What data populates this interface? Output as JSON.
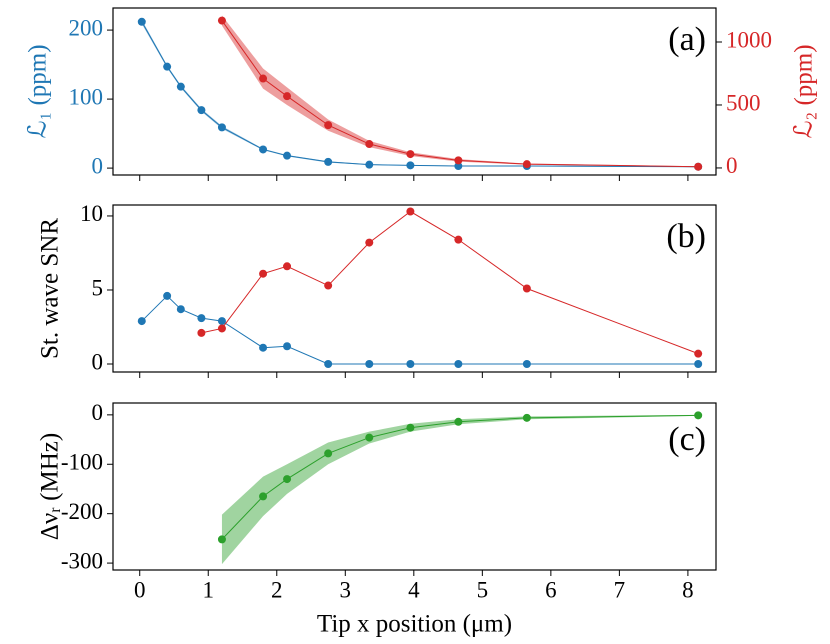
{
  "chart_data": [
    {
      "type": "line",
      "panel_label": "(a)",
      "ylabel": "ℒ₁ (ppm)",
      "y2label": "ℒ₂ (ppm)",
      "y_color": "#1f77b4",
      "y2_color": "#d62728",
      "xlim": [
        -0.39,
        8.41
      ],
      "ylim": [
        -10,
        232
      ],
      "yticks": [
        0,
        100,
        200
      ],
      "y2lim": [
        -56,
        1270
      ],
      "y2ticks": [
        0,
        500,
        1000
      ],
      "series": [
        {
          "color": "#1f77b4",
          "x": [
            0.03,
            0.4,
            0.6,
            0.9,
            1.2,
            1.8,
            2.15,
            2.75,
            3.35,
            3.95,
            4.65,
            5.65,
            8.15
          ],
          "values": [
            212,
            147,
            118,
            84,
            59,
            27,
            18,
            9,
            5,
            4,
            3,
            3,
            2
          ],
          "errors": [
            3,
            2,
            2,
            2,
            2,
            1,
            1,
            1,
            0.5,
            0.5,
            0.5,
            0.5,
            0.5
          ]
        },
        {
          "color": "#d62728",
          "axis": "y2",
          "x": [
            1.2,
            1.8,
            2.15,
            2.75,
            3.35,
            3.95,
            4.65,
            5.65,
            8.15
          ],
          "values": [
            1170,
            710,
            570,
            340,
            190,
            110,
            60,
            30,
            10
          ],
          "errors": [
            40,
            80,
            70,
            45,
            25,
            15,
            10,
            5,
            3
          ]
        }
      ]
    },
    {
      "type": "line",
      "panel_label": "(b)",
      "ylabel": "St. wave SNR",
      "xlim": [
        -0.39,
        8.41
      ],
      "ylim": [
        -0.54,
        10.74
      ],
      "yticks": [
        0,
        5,
        10
      ],
      "series": [
        {
          "color": "#1f77b4",
          "x": [
            0.03,
            0.4,
            0.6,
            0.9,
            1.2,
            1.8,
            2.15,
            2.75,
            3.35,
            3.95,
            4.65,
            5.65,
            8.15
          ],
          "values": [
            2.9,
            4.6,
            3.7,
            3.1,
            2.9,
            1.1,
            1.2,
            0,
            0,
            0,
            0,
            0,
            0
          ]
        },
        {
          "color": "#d62728",
          "x": [
            0.9,
            1.2,
            1.8,
            2.15,
            2.75,
            3.35,
            3.95,
            4.65,
            5.65,
            8.15
          ],
          "values": [
            2.1,
            2.4,
            6.1,
            6.6,
            5.3,
            8.2,
            10.3,
            8.4,
            5.1,
            0.7
          ]
        }
      ]
    },
    {
      "type": "line",
      "panel_label": "(c)",
      "ylabel": "Δνᵣ (MHz)",
      "xlabel": "Tip x position (μm)",
      "xlim": [
        -0.39,
        8.41
      ],
      "xticks": [
        0,
        1,
        2,
        3,
        4,
        5,
        6,
        7,
        8
      ],
      "ylim": [
        -314,
        24
      ],
      "yticks": [
        -300,
        -200,
        -100,
        0
      ],
      "series": [
        {
          "color": "#2ca02c",
          "x": [
            1.2,
            1.8,
            2.15,
            2.75,
            3.35,
            3.95,
            4.65,
            5.65,
            8.15
          ],
          "values": [
            -252,
            -165,
            -130,
            -78,
            -46,
            -26,
            -14,
            -6,
            -1
          ],
          "errors": [
            50,
            40,
            30,
            22,
            12,
            8,
            5,
            3,
            1
          ]
        }
      ]
    }
  ]
}
